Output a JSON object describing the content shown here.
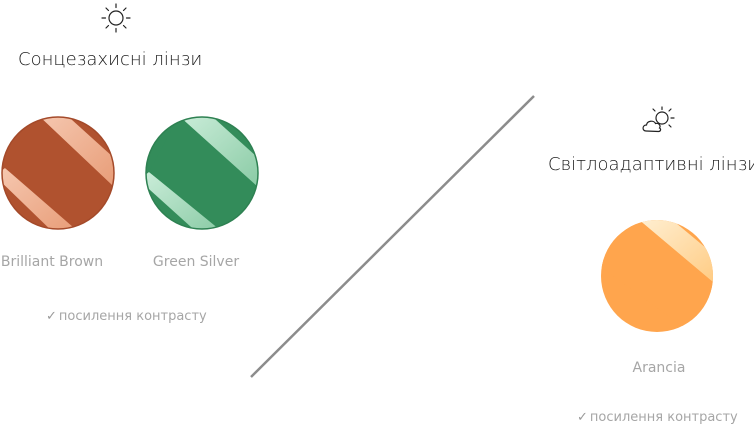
{
  "sun_section": {
    "icon": "sun-icon",
    "title": "Сонцезахисні лінзи",
    "lenses": [
      {
        "name": "Brilliant Brown",
        "color": "#b0522f"
      },
      {
        "name": "Green Silver",
        "color": "#338c5a"
      }
    ],
    "note_check": "✓",
    "note": "посилення контрасту"
  },
  "photo_section": {
    "icon": "sun-cloud-icon",
    "title": "Світлоадаптивні лінзи",
    "lenses": [
      {
        "name": "Arancia",
        "color": "#ffa54d"
      }
    ],
    "note_check": "✓",
    "note": "посилення контрасту"
  },
  "divider_color": "#8c8c8c"
}
